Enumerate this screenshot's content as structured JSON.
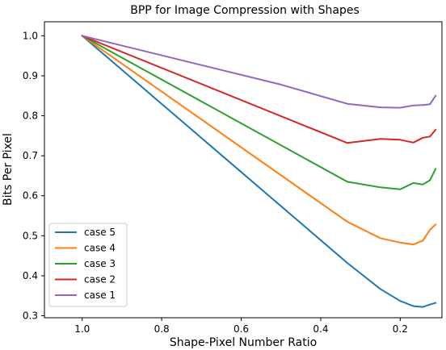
{
  "chart_data": {
    "type": "line",
    "title": "BPP for Image Compression with Shapes",
    "xlabel": "Shape-Pixel Number Ratio",
    "ylabel": "Bits Per Pixel",
    "x_inverted": true,
    "xlim": [
      1.095,
      0.095
    ],
    "ylim": [
      0.295,
      1.035
    ],
    "xticks": [
      1.0,
      0.8,
      0.6,
      0.4,
      0.2
    ],
    "xtick_labels": [
      "1.0",
      "0.8",
      "0.6",
      "0.4",
      "0.2"
    ],
    "yticks": [
      0.3,
      0.4,
      0.5,
      0.6,
      0.7,
      0.8,
      0.9,
      1.0
    ],
    "ytick_labels": [
      "0.3",
      "0.4",
      "0.5",
      "0.6",
      "0.7",
      "0.8",
      "0.9",
      "1.0"
    ],
    "grid": false,
    "legend_position": "lower-left",
    "series": [
      {
        "name": "case 5",
        "color": "#1f77b4",
        "x": [
          1.0,
          0.333,
          0.25,
          0.2,
          0.167,
          0.143,
          0.125,
          0.111
        ],
        "y": [
          1.0,
          0.432,
          0.367,
          0.337,
          0.324,
          0.322,
          0.328,
          0.332
        ]
      },
      {
        "name": "case 4",
        "color": "#ff7f0e",
        "x": [
          1.0,
          0.333,
          0.25,
          0.2,
          0.167,
          0.143,
          0.125,
          0.111
        ],
        "y": [
          1.0,
          0.535,
          0.494,
          0.483,
          0.478,
          0.488,
          0.515,
          0.528
        ]
      },
      {
        "name": "case 3",
        "color": "#2ca02c",
        "x": [
          1.0,
          0.333,
          0.25,
          0.2,
          0.167,
          0.143,
          0.125,
          0.111
        ],
        "y": [
          1.0,
          0.635,
          0.621,
          0.616,
          0.632,
          0.628,
          0.639,
          0.667
        ]
      },
      {
        "name": "case 2",
        "color": "#d62728",
        "x": [
          1.0,
          0.333,
          0.25,
          0.2,
          0.167,
          0.143,
          0.125,
          0.111
        ],
        "y": [
          1.0,
          0.732,
          0.742,
          0.74,
          0.733,
          0.745,
          0.748,
          0.765
        ]
      },
      {
        "name": "case 1",
        "color": "#9467bd",
        "x": [
          1.0,
          0.5,
          0.333,
          0.25,
          0.2,
          0.167,
          0.143,
          0.125,
          0.111
        ],
        "y": [
          1.0,
          0.878,
          0.83,
          0.821,
          0.82,
          0.826,
          0.827,
          0.829,
          0.85
        ]
      }
    ]
  }
}
